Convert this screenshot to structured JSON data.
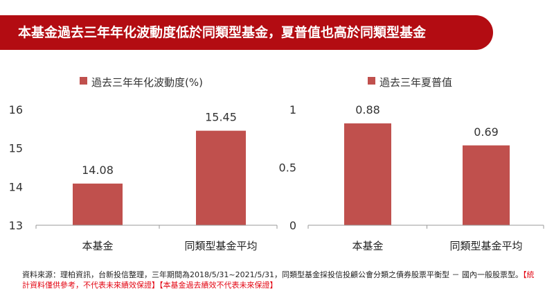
{
  "header": {
    "title": "本基金過去三年年化波動度低於同類型基金，夏普值也高於同類型基金"
  },
  "colors": {
    "banner": "#b30c12",
    "bar": "#c0504d",
    "disclaimer": "#e30613"
  },
  "chart_data": [
    {
      "type": "bar",
      "legend": "過去三年年化波動度(%)",
      "categories": [
        "本基金",
        "同類型基金平均"
      ],
      "values": [
        14.08,
        15.45
      ],
      "value_labels": [
        "14.08",
        "15.45"
      ],
      "ylim": [
        13,
        16
      ],
      "yticks": [
        13,
        14,
        15,
        16
      ],
      "ytick_labels": [
        "13",
        "14",
        "15",
        "16"
      ],
      "legend_position": "top"
    },
    {
      "type": "bar",
      "legend": "過去三年夏普值",
      "categories": [
        "本基金",
        "同類型基金平均"
      ],
      "values": [
        0.88,
        0.69
      ],
      "value_labels": [
        "0.88",
        "0.69"
      ],
      "ylim": [
        0,
        1
      ],
      "yticks": [
        0,
        0.5,
        1
      ],
      "ytick_labels": [
        "0",
        "0.5",
        "1"
      ],
      "legend_position": "top"
    }
  ],
  "footer": {
    "source": "資料來源：理柏資訊，台新投信整理，三年期間為2018/5/31~2021/5/31，同類型基金採投信投顧公會分類之債券股票平衡型 － 國內一般股票型。",
    "disclaimer": "【統計資料僅供參考，不代表未來績效保證】【本基金過去績效不代表未來保證】"
  }
}
